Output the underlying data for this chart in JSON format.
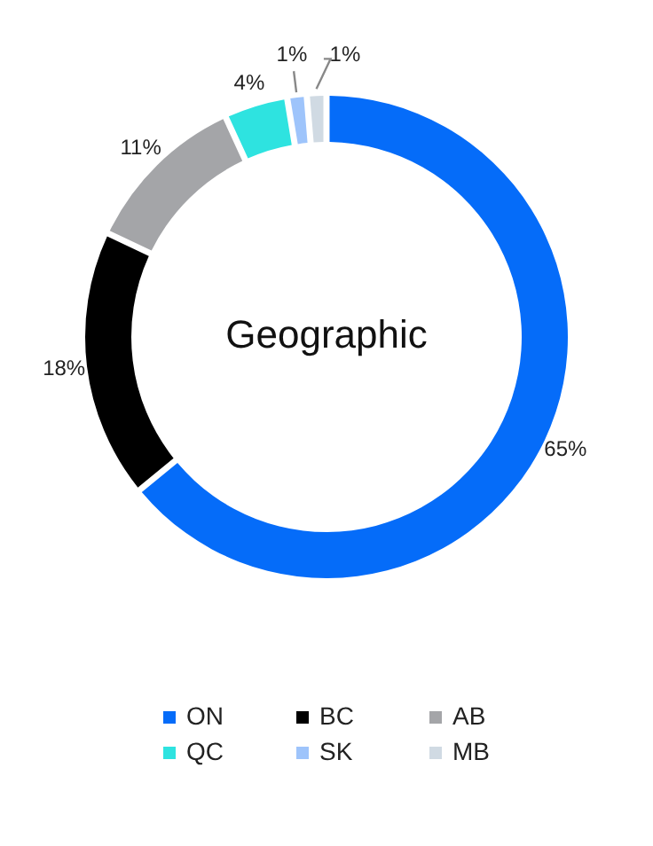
{
  "chart_data": {
    "type": "donut",
    "title": "Geographic",
    "categories": [
      "ON",
      "BC",
      "AB",
      "QC",
      "SK",
      "MB"
    ],
    "values": [
      65,
      18,
      11,
      4,
      1,
      1
    ],
    "colors": [
      "#056cf9",
      "#000000",
      "#a4a5a8",
      "#2ee3e0",
      "#9ec4fb",
      "#d0dae3"
    ],
    "value_labels": [
      "65%",
      "18%",
      "11%",
      "4%",
      "1%",
      "1%"
    ],
    "legend": "bottom"
  }
}
